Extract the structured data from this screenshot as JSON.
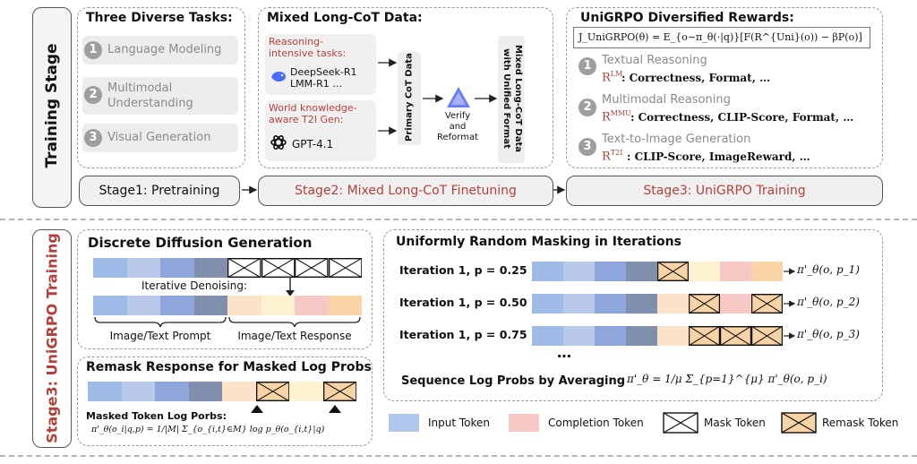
{
  "colors": {
    "input_token": [
      "#9dbbe6",
      "#b8c9ea",
      "#8ea6dc",
      "#7f8fac"
    ],
    "completion_token": [
      "#fbe2c8",
      "#fdf2cf",
      "#f6c8c6",
      "#f9d4a6"
    ],
    "mask_token": "#ffffff",
    "remask_token": "#f7d3a6",
    "accent_red": "#b5403a"
  },
  "training": {
    "label": "Training Stage",
    "tasks_title": "Three Diverse Tasks:",
    "tasks": [
      {
        "num": "1",
        "label": "Language Modeling"
      },
      {
        "num": "2",
        "label": "Multimodal Understanding"
      },
      {
        "num": "3",
        "label": "Visual Generation"
      }
    ],
    "mixed": {
      "title": "Mixed Long-CoT Data:",
      "reasoning_label": "Reasoning-intensive tasks:",
      "reasoning_models": "DeepSeek-R1\nLMM-R1 …",
      "world_label": "World knowledge-aware T2I Gen:",
      "world_model": "GPT-4.1",
      "primary": "Primary CoT Data",
      "verify": "Verify and Reformat",
      "mixed_out": "Mixed Long-CoT Data with Unified Format",
      "icons": [
        "whale-icon",
        "openai-icon",
        "verify-logo-icon"
      ]
    },
    "rewards": {
      "title": "UniGRPO Diversified Rewards:",
      "formula": "J_UniGRPO(θ) = E_{o∼π_θ(·|q)}[F(R^{Uni}(o)) − βP(o)]",
      "items": [
        {
          "num": "1",
          "name": "Textual Reasoning",
          "sym": "R",
          "sup": "LM",
          "desc": ": Correctness, Format, …"
        },
        {
          "num": "2",
          "name": "Multimodal Reasoning",
          "sym": "R",
          "sup": "MMU",
          "desc": ": Correctness, CLIP-Score, Format, …"
        },
        {
          "num": "3",
          "name": "Text-to-Image Generation",
          "sym": "R",
          "sup": "T2I",
          "desc": ": CLIP-Score, ImageReward, …"
        }
      ]
    },
    "stages": [
      "Stage1: Pretraining",
      "Stage2: Mixed Long-CoT Finetuning",
      "Stage3: UniGRPO Training"
    ]
  },
  "stage3": {
    "label": "Stage3: UniGRPO Training",
    "diffusion": {
      "title": "Discrete Diffusion Generation",
      "denoise": "Iterative Denoising:",
      "prompt": "Image/Text Prompt",
      "response": "Image/Text Response"
    },
    "remask": {
      "title": "Remask Response for Masked Log Probs",
      "caption": "Masked Token Log Porbs:",
      "formula": "π'_θ(o_i|q,p) = 1/|M| Σ_{o_{i,t}∈M} log p_θ(o_{i,t}|q)"
    },
    "masking": {
      "title": "Uniformly Random Masking in Iterations",
      "rows": [
        {
          "label": "Iteration 1, p = 0.25",
          "out": "π'_θ(o, p_1)"
        },
        {
          "label": "Iteration 1, p = 0.50",
          "out": "π'_θ(o, p_2)"
        },
        {
          "label": "Iteration 1, p = 0.75",
          "out": "π'_θ(o, p_3)"
        }
      ],
      "ellipsis": "…",
      "avg_label": "Sequence Log Probs by Averaging",
      "avg_formula": "π'_θ = 1/μ Σ_{p=1}^{μ} π'_θ(o, p_i)"
    },
    "legend": [
      {
        "label": "Input Token",
        "kind": "input"
      },
      {
        "label": "Completion Token",
        "kind": "completion"
      },
      {
        "label": "Mask Token",
        "kind": "mask"
      },
      {
        "label": "Remask Token",
        "kind": "remask"
      }
    ]
  }
}
